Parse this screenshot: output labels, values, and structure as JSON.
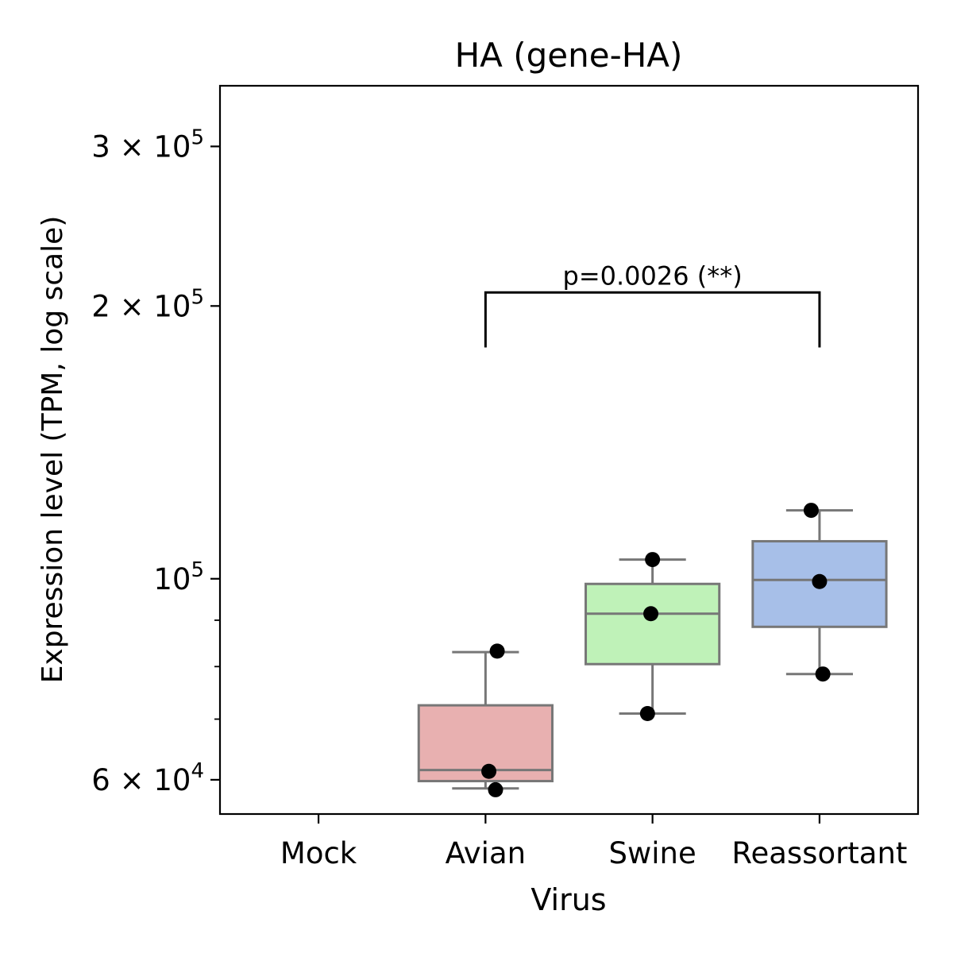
{
  "chart_data": {
    "type": "box",
    "title": "HA (gene-HA)",
    "xlabel": "Virus",
    "ylabel": "Expression level (TPM, log scale)",
    "yscale": "log",
    "ylim": [
      55000,
      350000
    ],
    "categories": [
      "Mock",
      "Avian",
      "Swine",
      "Reassortant"
    ],
    "yticks": [
      {
        "value": 60000,
        "base": "6 × 10",
        "exp": "4"
      },
      {
        "value": 100000,
        "base": "10",
        "exp": "5"
      },
      {
        "value": 200000,
        "base": "2 × 10",
        "exp": "5"
      },
      {
        "value": 300000,
        "base": "3 × 10",
        "exp": "5"
      }
    ],
    "minor_ticks": [
      70000,
      80000,
      90000
    ],
    "grid": false,
    "boxes": [
      {
        "category": "Mock",
        "color": null,
        "whislo": null,
        "q1": null,
        "median": null,
        "q3": null,
        "whishi": null,
        "points": []
      },
      {
        "category": "Avian",
        "color": "#e8b0b0",
        "whislo": 58700,
        "q1": 59800,
        "median": 61500,
        "q3": 72500,
        "whishi": 83000,
        "points": [
          {
            "y": 83200,
            "jitter": 0.07
          },
          {
            "y": 61300,
            "jitter": 0.02
          },
          {
            "y": 58500,
            "jitter": 0.06
          }
        ]
      },
      {
        "category": "Swine",
        "color": "#bff2b8",
        "whislo": 71000,
        "q1": 80500,
        "median": 91500,
        "q3": 98700,
        "whishi": 105000,
        "points": [
          {
            "y": 105000,
            "jitter": 0.0
          },
          {
            "y": 91500,
            "jitter": -0.01
          },
          {
            "y": 71000,
            "jitter": -0.03
          }
        ]
      },
      {
        "category": "Reassortant",
        "color": "#a7bfe8",
        "whislo": 78500,
        "q1": 88500,
        "median": 99700,
        "q3": 110000,
        "whishi": 119000,
        "points": [
          {
            "y": 119000,
            "jitter": -0.05
          },
          {
            "y": 99300,
            "jitter": 0.0
          },
          {
            "y": 78500,
            "jitter": 0.02
          }
        ]
      }
    ],
    "annotations": [
      {
        "type": "significance-bracket",
        "from": "Avian",
        "to": "Reassortant",
        "y": 207000,
        "drop_to": 180000,
        "text": "p=0.0026 (**)"
      }
    ]
  },
  "colors": {
    "box_edge": "#777777",
    "points": "#000000",
    "axes": "#000000"
  }
}
